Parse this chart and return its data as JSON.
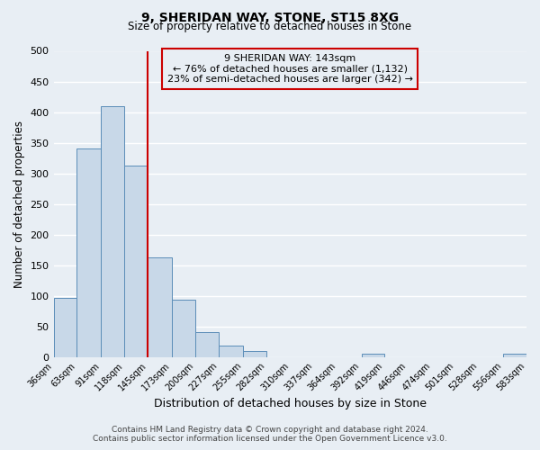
{
  "title": "9, SHERIDAN WAY, STONE, ST15 8XG",
  "subtitle": "Size of property relative to detached houses in Stone",
  "xlabel": "Distribution of detached houses by size in Stone",
  "ylabel": "Number of detached properties",
  "bin_edges": [
    36,
    63,
    91,
    118,
    145,
    173,
    200,
    227,
    255,
    282,
    310,
    337,
    364,
    392,
    419,
    446,
    474,
    501,
    528,
    556,
    583
  ],
  "bar_heights": [
    97,
    341,
    410,
    312,
    163,
    94,
    41,
    19,
    9,
    0,
    0,
    0,
    0,
    5,
    0,
    0,
    0,
    0,
    0,
    5
  ],
  "bar_color": "#c8d8e8",
  "bar_edge_color": "#5b8db8",
  "vline_x": 145,
  "vline_color": "#cc0000",
  "annotation_line1": "9 SHERIDAN WAY: 143sqm",
  "annotation_line2": "← 76% of detached houses are smaller (1,132)",
  "annotation_line3": "23% of semi-detached houses are larger (342) →",
  "annotation_box_color": "#cc0000",
  "annotation_text_fontsize": 8,
  "ylim": [
    0,
    500
  ],
  "yticks": [
    0,
    50,
    100,
    150,
    200,
    250,
    300,
    350,
    400,
    450,
    500
  ],
  "tick_labels": [
    "36sqm",
    "63sqm",
    "91sqm",
    "118sqm",
    "145sqm",
    "173sqm",
    "200sqm",
    "227sqm",
    "255sqm",
    "282sqm",
    "310sqm",
    "337sqm",
    "364sqm",
    "392sqm",
    "419sqm",
    "446sqm",
    "474sqm",
    "501sqm",
    "528sqm",
    "556sqm",
    "583sqm"
  ],
  "footer_line1": "Contains HM Land Registry data © Crown copyright and database right 2024.",
  "footer_line2": "Contains public sector information licensed under the Open Government Licence v3.0.",
  "background_color": "#e8eef4",
  "grid_color": "#ffffff",
  "title_fontsize": 10,
  "subtitle_fontsize": 8.5,
  "xlabel_fontsize": 9,
  "ylabel_fontsize": 8.5
}
